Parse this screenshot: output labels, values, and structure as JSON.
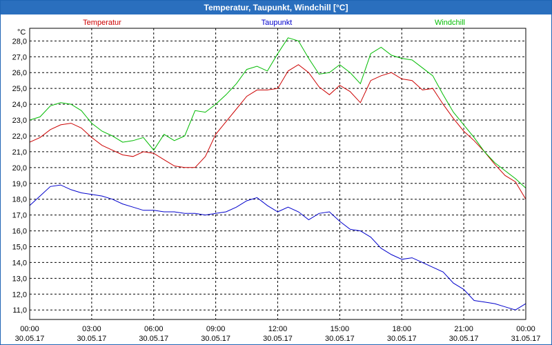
{
  "window": {
    "title": "Temperatur, Taupunkt, Windchill [°C]"
  },
  "chart_data": {
    "type": "line",
    "title": "Temperatur, Taupunkt, Windchill [°C]",
    "ylabel": "°C",
    "ylim": [
      10.4,
      28.8
    ],
    "xlim": [
      0,
      24
    ],
    "grid": true,
    "y_ticks": [
      "28,0",
      "27,0",
      "26,0",
      "25,0",
      "24,0",
      "23,0",
      "22,0",
      "21,0",
      "20,0",
      "19,0",
      "18,0",
      "17,0",
      "16,0",
      "15,0",
      "14,0",
      "13,0",
      "12,0",
      "11,0"
    ],
    "x_ticks": [
      {
        "time": "00:00",
        "date": "30.05.17"
      },
      {
        "time": "03:00",
        "date": "30.05.17"
      },
      {
        "time": "06:00",
        "date": "30.05.17"
      },
      {
        "time": "09:00",
        "date": "30.05.17"
      },
      {
        "time": "12:00",
        "date": "30.05.17"
      },
      {
        "time": "15:00",
        "date": "30.05.17"
      },
      {
        "time": "18:00",
        "date": "30.05.17"
      },
      {
        "time": "21:00",
        "date": "30.05.17"
      },
      {
        "time": "00:00",
        "date": "31.05.17"
      }
    ],
    "x": [
      0,
      0.5,
      1,
      1.5,
      2,
      2.5,
      3,
      3.5,
      4,
      4.5,
      5,
      5.5,
      6,
      6.5,
      7,
      7.5,
      8,
      8.5,
      9,
      9.5,
      10,
      10.5,
      11,
      11.5,
      12,
      12.5,
      13,
      13.5,
      14,
      14.5,
      15,
      15.5,
      16,
      16.5,
      17,
      17.5,
      18,
      18.5,
      19,
      19.5,
      20,
      20.5,
      21,
      21.5,
      22,
      22.5,
      23,
      23.5,
      24
    ],
    "series": [
      {
        "name": "Temperatur",
        "color": "#cc0000",
        "values": [
          21.6,
          21.9,
          22.4,
          22.7,
          22.8,
          22.5,
          21.9,
          21.4,
          21.1,
          20.8,
          20.7,
          21.0,
          20.9,
          20.5,
          20.1,
          20.0,
          20.0,
          20.7,
          22.1,
          22.9,
          23.7,
          24.5,
          24.9,
          24.9,
          25.0,
          26.1,
          26.5,
          26.0,
          25.1,
          24.6,
          25.2,
          24.8,
          24.1,
          25.5,
          25.8,
          26.0,
          25.6,
          25.5,
          24.9,
          25.0,
          24.0,
          23.1,
          22.3,
          21.7,
          21.0,
          20.2,
          19.5,
          19.1,
          18.0
        ]
      },
      {
        "name": "Taupunkt",
        "color": "#0000cc",
        "values": [
          17.6,
          18.2,
          18.8,
          18.9,
          18.6,
          18.4,
          18.3,
          18.2,
          18.0,
          17.7,
          17.5,
          17.3,
          17.3,
          17.2,
          17.2,
          17.1,
          17.1,
          17.0,
          17.1,
          17.2,
          17.5,
          17.9,
          18.1,
          17.6,
          17.2,
          17.5,
          17.2,
          16.7,
          17.1,
          17.2,
          16.6,
          16.1,
          16.0,
          15.6,
          14.9,
          14.5,
          14.2,
          14.3,
          14.0,
          13.7,
          13.4,
          12.7,
          12.3,
          11.6,
          11.5,
          11.4,
          11.2,
          11.0,
          11.4
        ]
      },
      {
        "name": "Windchill",
        "color": "#00bb00",
        "values": [
          23.0,
          23.2,
          23.9,
          24.1,
          24.0,
          23.6,
          22.8,
          22.3,
          22.0,
          21.6,
          21.7,
          21.9,
          21.1,
          22.1,
          21.7,
          22.0,
          23.6,
          23.5,
          24.0,
          24.6,
          25.3,
          26.2,
          26.4,
          26.1,
          27.2,
          28.2,
          28.0,
          26.9,
          25.9,
          26.0,
          26.5,
          26.0,
          25.3,
          27.2,
          27.6,
          27.1,
          26.9,
          26.8,
          26.3,
          25.8,
          24.6,
          23.5,
          22.7,
          21.9,
          21.0,
          20.3,
          19.8,
          19.3,
          18.7
        ]
      }
    ]
  }
}
